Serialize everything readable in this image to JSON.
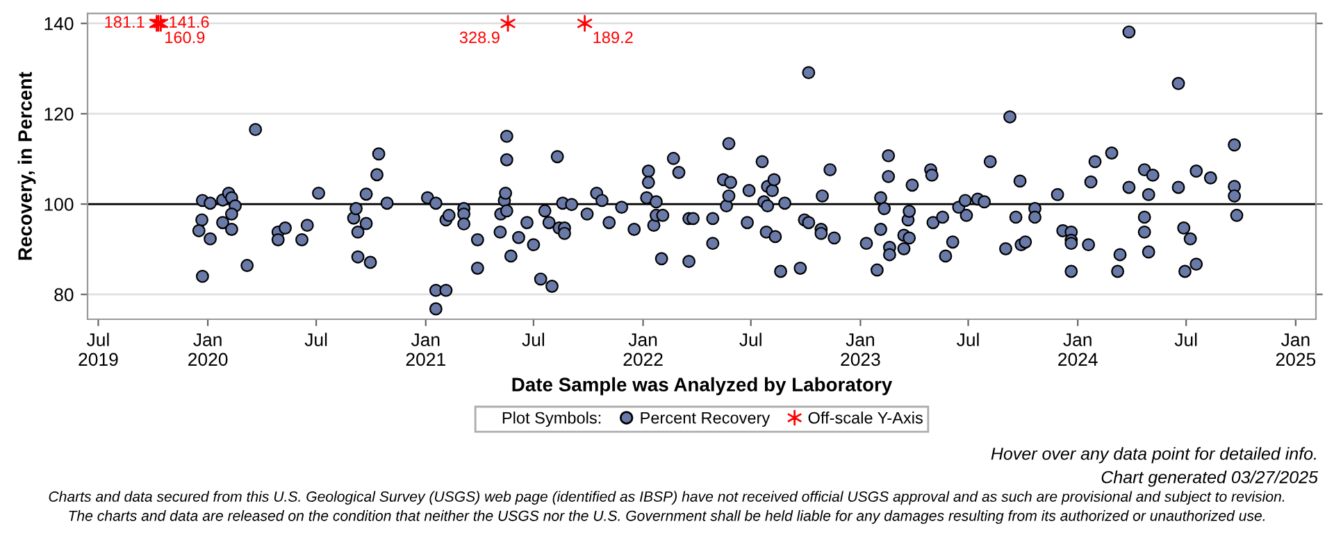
{
  "chart_data": {
    "type": "scatter",
    "xlabel": "Date Sample was Analyzed by Laboratory",
    "ylabel": "Recovery, in Percent",
    "legend_title": "Plot Symbols:",
    "legend": "bottom",
    "grid": "y",
    "xlim": [
      "2019-06-13",
      "2025-02-04"
    ],
    "xticks": [
      {
        "value": "2019-07-01",
        "label": "Jul\n2019"
      },
      {
        "value": "2020-01-01",
        "label": "Jan\n2020"
      },
      {
        "value": "2020-07-01",
        "label": "Jul"
      },
      {
        "value": "2021-01-01",
        "label": "Jan\n2021"
      },
      {
        "value": "2021-07-01",
        "label": "Jul"
      },
      {
        "value": "2022-01-01",
        "label": "Jan\n2022"
      },
      {
        "value": "2022-07-01",
        "label": "Jul"
      },
      {
        "value": "2023-01-01",
        "label": "Jan\n2023"
      },
      {
        "value": "2023-07-01",
        "label": "Jul"
      },
      {
        "value": "2024-01-01",
        "label": "Jan\n2024"
      },
      {
        "value": "2024-07-01",
        "label": "Jul"
      },
      {
        "value": "2025-01-01",
        "label": "Jan\n2025"
      }
    ],
    "ylim": [
      74.5,
      142.2
    ],
    "yticks": [
      80,
      100,
      120,
      140
    ],
    "ref_lines": [
      {
        "axis": "y",
        "value": 100,
        "color": "#000000"
      }
    ],
    "series": [
      {
        "name": "Percent Recovery",
        "color": "#6a7aa8",
        "marker": "circle",
        "x": [
          "2019-12-23",
          "2020-01-05",
          "2019-12-22",
          "2019-12-17",
          "2020-01-05",
          "2019-12-23",
          "2020-01-26",
          "2020-02-05",
          "2020-02-10",
          "2020-02-16",
          "2020-02-10",
          "2020-01-26",
          "2020-02-10",
          "2020-03-07",
          "2020-03-21",
          "2020-04-28",
          "2020-04-28",
          "2020-05-10",
          "2020-06-07",
          "2020-06-16",
          "2020-07-05",
          "2020-09-02",
          "2020-09-06",
          "2020-09-09",
          "2020-09-09",
          "2020-09-23",
          "2020-09-23",
          "2020-09-30",
          "2020-10-11",
          "2020-10-14",
          "2020-10-28",
          "2021-01-04",
          "2021-01-18",
          "2021-01-18",
          "2021-01-18",
          "2021-02-04",
          "2021-02-09",
          "2021-02-04",
          "2021-03-06",
          "2021-03-06",
          "2021-03-06",
          "2021-03-29",
          "2021-03-29",
          "2021-05-06",
          "2021-05-07",
          "2021-05-13",
          "2021-05-15",
          "2021-05-17",
          "2021-05-17",
          "2021-05-17",
          "2021-05-24",
          "2021-06-06",
          "2021-06-20",
          "2021-07-01",
          "2021-07-13",
          "2021-07-20",
          "2021-07-27",
          "2021-08-01",
          "2021-08-10",
          "2021-08-13",
          "2021-08-19",
          "2021-08-22",
          "2021-08-22",
          "2021-09-03",
          "2021-09-29",
          "2021-10-15",
          "2021-10-24",
          "2021-11-05",
          "2021-11-26",
          "2021-12-17",
          "2022-01-07",
          "2022-01-10",
          "2022-01-10",
          "2022-01-19",
          "2022-01-23",
          "2022-01-23",
          "2022-02-01",
          "2022-02-03",
          "2022-02-21",
          "2022-03-02",
          "2022-03-19",
          "2022-03-19",
          "2022-03-26",
          "2022-04-28",
          "2022-04-28",
          "2022-05-16",
          "2022-05-21",
          "2022-05-25",
          "2022-05-25",
          "2022-05-28",
          "2022-06-25",
          "2022-06-28",
          "2022-07-20",
          "2022-07-23",
          "2022-07-27",
          "2022-07-29",
          "2022-07-29",
          "2022-08-06",
          "2022-08-09",
          "2022-08-11",
          "2022-08-20",
          "2022-08-27",
          "2022-09-22",
          "2022-09-29",
          "2022-10-06",
          "2022-10-06",
          "2022-10-27",
          "2022-10-27",
          "2022-10-29",
          "2022-11-11",
          "2022-11-18",
          "2023-01-11",
          "2023-01-29",
          "2023-02-04",
          "2023-02-04",
          "2023-02-10",
          "2023-02-17",
          "2023-02-17",
          "2023-02-19",
          "2023-02-19",
          "2023-03-15",
          "2023-03-15",
          "2023-03-22",
          "2023-03-24",
          "2023-03-24",
          "2023-03-29",
          "2023-04-29",
          "2023-05-01",
          "2023-05-03",
          "2023-05-19",
          "2023-05-24",
          "2023-06-05",
          "2023-06-15",
          "2023-06-26",
          "2023-06-28",
          "2023-07-17",
          "2023-07-28",
          "2023-08-07",
          "2023-09-02",
          "2023-09-09",
          "2023-09-19",
          "2023-09-26",
          "2023-09-28",
          "2023-10-05",
          "2023-10-21",
          "2023-10-21",
          "2023-11-28",
          "2023-12-07",
          "2023-12-21",
          "2023-12-21",
          "2023-12-21",
          "2023-12-21",
          "2024-01-19",
          "2024-01-23",
          "2024-01-30",
          "2024-02-27",
          "2024-03-08",
          "2024-03-12",
          "2024-03-27",
          "2024-03-27",
          "2024-04-22",
          "2024-04-22",
          "2024-04-22",
          "2024-04-29",
          "2024-04-29",
          "2024-05-06",
          "2024-06-18",
          "2024-06-18",
          "2024-06-27",
          "2024-06-29",
          "2024-07-08",
          "2024-07-18",
          "2024-07-18",
          "2024-08-11",
          "2024-09-20",
          "2024-09-20",
          "2024-09-20",
          "2024-09-24"
        ],
        "values": [
          100.8,
          100.2,
          96.5,
          94.1,
          92.3,
          84.0,
          100.9,
          102.4,
          101.4,
          99.6,
          97.8,
          95.9,
          94.4,
          86.4,
          116.5,
          93.8,
          92.1,
          94.7,
          92.1,
          95.3,
          102.4,
          96.9,
          99.0,
          93.8,
          88.3,
          102.2,
          95.7,
          87.1,
          106.5,
          111.1,
          100.2,
          101.4,
          100.2,
          80.9,
          76.8,
          96.5,
          97.5,
          80.9,
          99.0,
          97.8,
          95.6,
          92.1,
          85.8,
          93.8,
          97.8,
          100.8,
          102.4,
          115.0,
          109.8,
          98.5,
          88.5,
          92.6,
          95.9,
          91.0,
          83.4,
          98.5,
          95.9,
          81.8,
          110.5,
          94.7,
          100.2,
          94.7,
          93.5,
          99.9,
          97.8,
          102.4,
          100.8,
          95.9,
          99.3,
          94.4,
          101.4,
          107.3,
          104.8,
          95.3,
          100.5,
          97.5,
          87.9,
          97.5,
          110.1,
          107.0,
          96.8,
          87.3,
          96.8,
          96.8,
          91.3,
          105.4,
          99.6,
          113.4,
          101.8,
          104.8,
          95.9,
          103.0,
          109.4,
          100.5,
          93.8,
          103.9,
          99.6,
          103.0,
          105.4,
          92.8,
          85.1,
          100.2,
          85.8,
          96.5,
          129.1,
          95.9,
          94.4,
          93.5,
          101.8,
          107.6,
          92.5,
          91.3,
          85.4,
          94.4,
          101.4,
          99.0,
          110.7,
          106.1,
          90.4,
          88.8,
          93.1,
          90.1,
          96.5,
          98.4,
          92.5,
          104.2,
          107.6,
          106.4,
          95.9,
          97.1,
          88.5,
          91.6,
          99.3,
          100.8,
          97.5,
          101.1,
          100.5,
          109.4,
          90.1,
          119.3,
          97.1,
          105.1,
          91.0,
          91.6,
          99.0,
          97.1,
          102.1,
          94.1,
          93.8,
          92.0,
          91.3,
          85.1,
          91.0,
          104.9,
          109.4,
          111.3,
          85.1,
          88.8,
          138.1,
          103.7,
          107.6,
          97.1,
          93.8,
          102.1,
          89.4,
          106.4,
          126.7,
          103.7,
          94.7,
          85.1,
          92.3,
          107.3,
          86.7,
          105.8,
          113.1,
          103.9,
          101.8,
          97.5
        ]
      },
      {
        "name": "Off-scale Y-Axis",
        "color": "#ff0000",
        "marker": "cross",
        "x": [
          "2019-10-07",
          "2019-10-10",
          "2019-10-14",
          "2021-05-19",
          "2021-09-25"
        ],
        "values": [
          140,
          140,
          140,
          140,
          140
        ]
      }
    ],
    "annotations": [
      {
        "text": "181.1",
        "x": "2019-10-07",
        "y": 140
      },
      {
        "text": "141.6",
        "x": "2019-10-14",
        "y": 140
      },
      {
        "text": "160.9",
        "x": "2019-10-10",
        "y": 140
      },
      {
        "text": "328.9",
        "x": "2021-05-19",
        "y": 140
      },
      {
        "text": "189.2",
        "x": "2021-09-25",
        "y": 140
      },
      "Hover over any data point for detailed info.",
      "Chart generated 03/27/2025",
      "Charts and data secured from this U.S. Geological Survey (USGS) web page (identified as IBSP) have not received official USGS approval and as such are provisional and subject to revision.",
      "The charts and data are released on the condition that neither the USGS nor the U.S. Government shall be held liable for any damages resulting from its authorized or unauthorized use."
    ]
  }
}
